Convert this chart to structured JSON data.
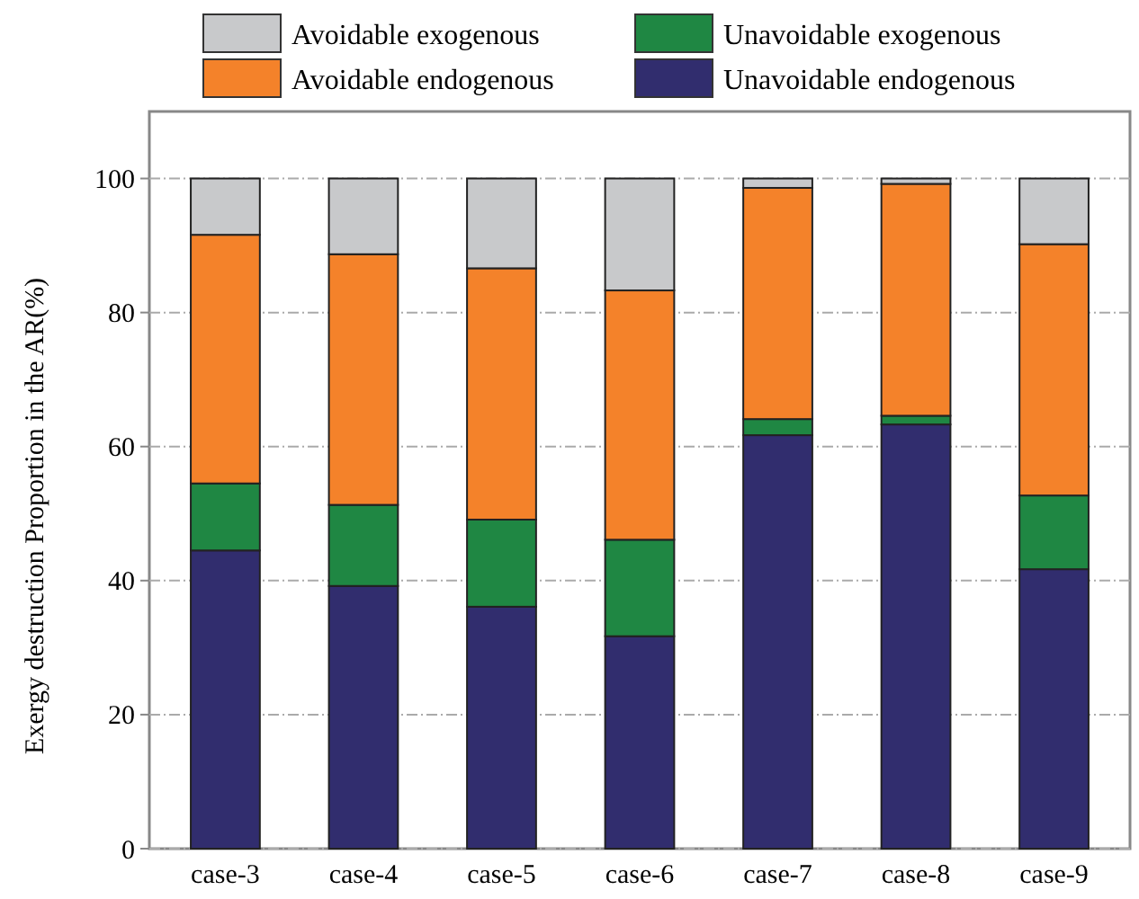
{
  "chart_data": {
    "type": "bar",
    "stacked": true,
    "ylabel": "Exergy destruction Proportion in the AR(%)",
    "categories": [
      "case-3",
      "case-4",
      "case-5",
      "case-6",
      "case-7",
      "case-8",
      "case-9"
    ],
    "series": [
      {
        "name": "Unavoidable endogenous",
        "color": "#312d6e",
        "values": [
          44.5,
          39.2,
          36.1,
          31.7,
          61.7,
          63.3,
          41.7
        ]
      },
      {
        "name": "Unavoidable exogenous",
        "color": "#1f8743",
        "values": [
          10.0,
          12.1,
          13.0,
          14.4,
          2.4,
          1.3,
          11.0
        ]
      },
      {
        "name": "Avoidable endogenous",
        "color": "#f4822a",
        "values": [
          37.1,
          37.4,
          37.5,
          37.2,
          34.5,
          34.6,
          37.5
        ]
      },
      {
        "name": "Avoidable exogenous",
        "color": "#c8c9cb",
        "values": [
          8.4,
          11.3,
          13.4,
          16.7,
          1.4,
          0.8,
          9.8
        ]
      }
    ],
    "ylim": [
      0,
      110
    ],
    "yticks": [
      0,
      20,
      40,
      60,
      80,
      100
    ],
    "grid": "y",
    "legend": "top"
  }
}
